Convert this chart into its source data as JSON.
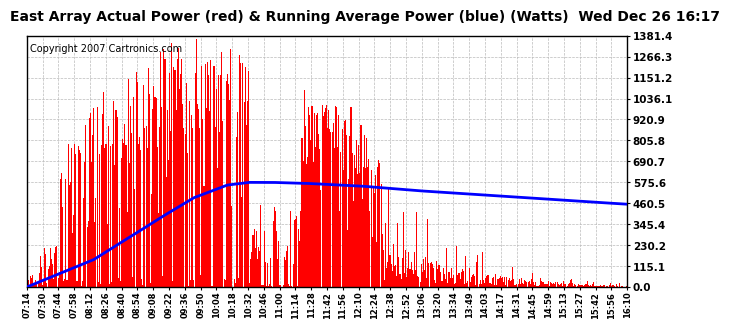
{
  "title": "East Array Actual Power (red) & Running Average Power (blue) (Watts)  Wed Dec 26 16:17",
  "copyright": "Copyright 2007 Cartronics.com",
  "yticks": [
    0.0,
    115.1,
    230.2,
    345.4,
    460.5,
    575.6,
    690.7,
    805.8,
    920.9,
    1036.1,
    1151.2,
    1266.3,
    1381.4
  ],
  "ymax": 1381.4,
  "ymin": 0.0,
  "bar_color": "#FF0000",
  "avg_color": "#0000FF",
  "background_color": "#FFFFFF",
  "grid_color": "#BBBBBB",
  "title_fontsize": 10,
  "copyright_fontsize": 7,
  "xtick_labels": [
    "07:14",
    "07:30",
    "07:44",
    "07:58",
    "08:12",
    "08:26",
    "08:40",
    "08:54",
    "09:08",
    "09:22",
    "09:36",
    "09:50",
    "10:04",
    "10:18",
    "10:32",
    "10:46",
    "11:00",
    "11:14",
    "11:28",
    "11:42",
    "11:56",
    "12:10",
    "12:24",
    "12:38",
    "12:52",
    "13:06",
    "13:20",
    "13:34",
    "13:49",
    "14:03",
    "14:17",
    "14:31",
    "14:45",
    "14:59",
    "15:13",
    "15:27",
    "15:42",
    "15:56",
    "16:10"
  ],
  "avg_control_x": [
    0,
    60,
    120,
    150,
    180,
    200,
    220,
    250,
    300,
    350,
    400,
    450,
    500,
    540
  ],
  "avg_control_y": [
    0,
    150,
    380,
    490,
    560,
    575,
    575,
    570,
    555,
    530,
    510,
    490,
    470,
    455
  ]
}
